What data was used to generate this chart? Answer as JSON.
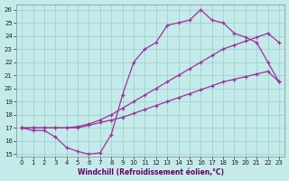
{
  "background_color": "#c5eaea",
  "grid_color": "#99cccc",
  "line_color": "#993399",
  "xlabel": "Windchill (Refroidissement éolien,°C)",
  "xlim": [
    -0.5,
    23.5
  ],
  "ylim": [
    14.8,
    26.4
  ],
  "xticks": [
    0,
    1,
    2,
    3,
    4,
    5,
    6,
    7,
    8,
    9,
    10,
    11,
    12,
    13,
    14,
    15,
    16,
    17,
    18,
    19,
    20,
    21,
    22,
    23
  ],
  "yticks": [
    15,
    16,
    17,
    18,
    19,
    20,
    21,
    22,
    23,
    24,
    25,
    26
  ],
  "line1_x": [
    0,
    1,
    2,
    3,
    4,
    5,
    6,
    7,
    8,
    9,
    10,
    11,
    12,
    13,
    14,
    15,
    16,
    17,
    18,
    19,
    20,
    21,
    22,
    23
  ],
  "line1_y": [
    17.0,
    17.0,
    17.0,
    17.0,
    17.0,
    17.0,
    17.2,
    17.4,
    17.6,
    17.8,
    18.1,
    18.4,
    18.7,
    19.0,
    19.3,
    19.6,
    19.9,
    20.2,
    20.5,
    20.7,
    20.9,
    21.1,
    21.3,
    20.5
  ],
  "line2_x": [
    0,
    1,
    2,
    3,
    4,
    5,
    6,
    7,
    8,
    9,
    10,
    11,
    12,
    13,
    14,
    15,
    16,
    17,
    18,
    19,
    20,
    21,
    22,
    23
  ],
  "line2_y": [
    17.0,
    17.0,
    17.0,
    17.0,
    17.0,
    17.1,
    17.3,
    17.6,
    18.0,
    18.5,
    19.0,
    19.5,
    20.0,
    20.5,
    21.0,
    21.5,
    22.0,
    22.5,
    23.0,
    23.3,
    23.6,
    23.9,
    24.2,
    23.5
  ],
  "line3_x": [
    0,
    1,
    2,
    3,
    4,
    5,
    6,
    7,
    8,
    9,
    10,
    11,
    12,
    13,
    14,
    15,
    16,
    17,
    18,
    19,
    20,
    21,
    22,
    23
  ],
  "line3_y": [
    17.0,
    16.8,
    16.8,
    16.3,
    15.5,
    15.2,
    15.0,
    15.1,
    16.5,
    19.5,
    22.0,
    23.0,
    23.5,
    24.8,
    25.0,
    25.2,
    26.0,
    25.2,
    25.0,
    24.2,
    23.9,
    23.5,
    22.0,
    20.5
  ]
}
